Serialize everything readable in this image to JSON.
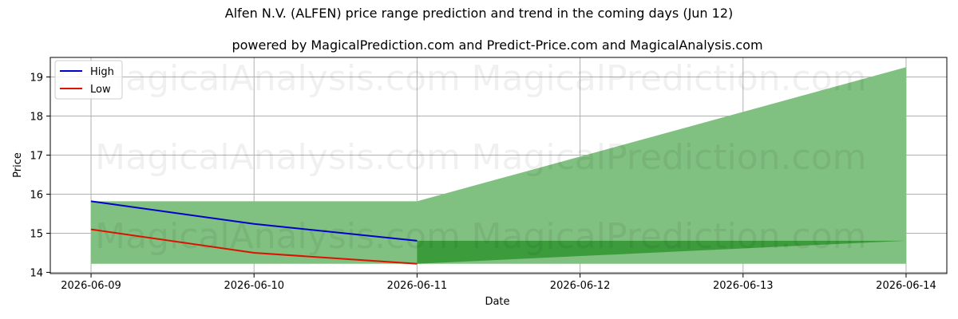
{
  "chart_data": {
    "type": "line",
    "title": "Alfen N.V. (ALFEN) price range prediction and trend in the coming days (Jun 12)",
    "subtitle": "powered by MagicalPrediction.com and Predict-Price.com and MagicalAnalysis.com",
    "xlabel": "Date",
    "ylabel": "Price",
    "x_ticks": [
      "2026-06-09",
      "2026-06-10",
      "2026-06-11",
      "2026-06-12",
      "2026-06-13",
      "2026-06-14"
    ],
    "y_ticks": [
      14,
      15,
      16,
      17,
      18,
      19
    ],
    "xlim": [
      "2026-06-08 18:00",
      "2026-06-14 06:00"
    ],
    "ylim": [
      13.97,
      19.5
    ],
    "grid": true,
    "legend_position": "top-left",
    "watermarks": [
      "MagicalAnalysis.com",
      "MagicalPrediction.com"
    ],
    "series": [
      {
        "name": "High",
        "color": "#0000cc",
        "x": [
          "2026-06-09",
          "2026-06-10",
          "2026-06-11"
        ],
        "values": [
          15.82,
          15.24,
          14.81
        ]
      },
      {
        "name": "Low",
        "color": "#dd1100",
        "x": [
          "2026-06-09",
          "2026-06-10",
          "2026-06-11"
        ],
        "values": [
          15.1,
          14.5,
          14.22
        ]
      }
    ],
    "bands": [
      {
        "color": "#80c080",
        "x": [
          "2026-06-09",
          "2026-06-11"
        ],
        "upper": [
          15.82,
          15.82
        ],
        "lower": [
          14.22,
          14.22
        ]
      },
      {
        "color": "#80c080",
        "x": [
          "2026-06-11",
          "2026-06-14"
        ],
        "upper": [
          15.82,
          19.25
        ],
        "lower": [
          14.22,
          14.22
        ]
      },
      {
        "color": "#3c9c3c",
        "x": [
          "2026-06-11",
          "2026-06-14"
        ],
        "upper": [
          14.81,
          14.81
        ],
        "lower": [
          14.22,
          14.81
        ]
      }
    ]
  }
}
